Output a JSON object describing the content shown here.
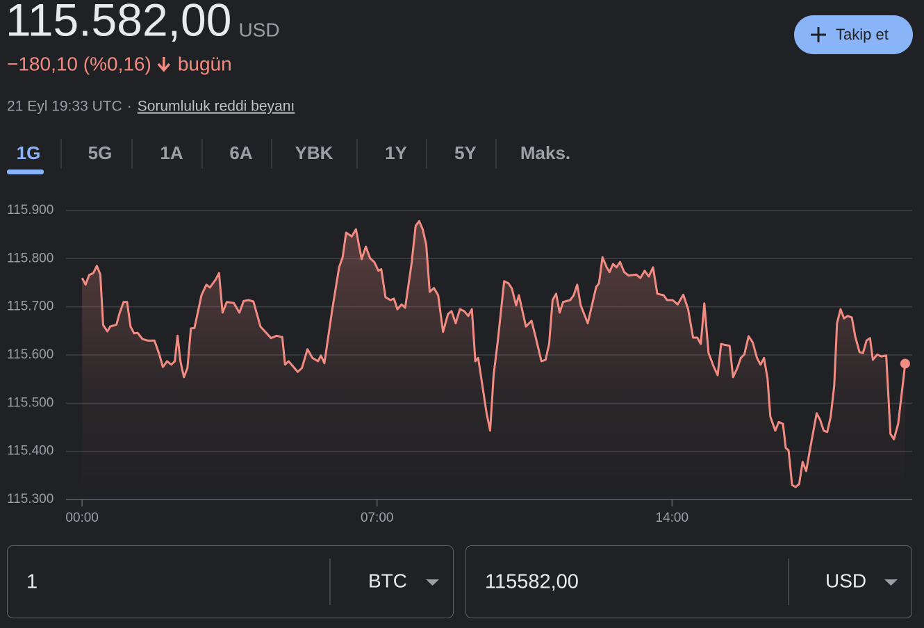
{
  "header": {
    "price": "115.582,00",
    "currency": "USD",
    "change": "−180,10 (%0,16)",
    "period": "bugün",
    "timestamp": "21 Eyl 19:33 UTC",
    "separator": "·",
    "disclaimer": "Sorumluluk reddi beyanı",
    "follow_button": "Takip et"
  },
  "tabs": {
    "items": [
      "1G",
      "5G",
      "1A",
      "6A",
      "YBK",
      "1Y",
      "5Y",
      "Maks."
    ],
    "active": 0
  },
  "chart_data": {
    "type": "line",
    "color": "#f28b82",
    "grid": true,
    "x": [
      0,
      5,
      10,
      16,
      21,
      26,
      30,
      36,
      40,
      49,
      53,
      59,
      64,
      69,
      74,
      79,
      86,
      93,
      103,
      110,
      115,
      121,
      127,
      132,
      136,
      140,
      145,
      150,
      155,
      160,
      170,
      177,
      182,
      190,
      195,
      200,
      206,
      216,
      224,
      230,
      237,
      244,
      254,
      269,
      277,
      285,
      289,
      294,
      307,
      313,
      321,
      328,
      336,
      340,
      345,
      356,
      366,
      371,
      376,
      384,
      390,
      398,
      404,
      410,
      416,
      422,
      426,
      432,
      439,
      444,
      449,
      455,
      460,
      469,
      475,
      480,
      485,
      490,
      495,
      501,
      507,
      514,
      521,
      526,
      532,
      538,
      544,
      550,
      555,
      560,
      564,
      576,
      581,
      586,
      592,
      601,
      607,
      612,
      618,
      622,
      632,
      640,
      646,
      654,
      660,
      665,
      670,
      675,
      680,
      685,
      695,
      700,
      705,
      710,
      720,
      726,
      732,
      736,
      741,
      747,
      751,
      756,
      761,
      766,
      772,
      778,
      789,
      795,
      801,
      807,
      813,
      819,
      828,
      833,
      841,
      848,
      856,
      863,
      870,
      876,
      881,
      886,
      892,
      899,
      905,
      910,
      915,
      922,
      927,
      933,
      938,
      943,
      949,
      955,
      961,
      966,
      971,
      976,
      980,
      987,
      992,
      998,
      1002,
      1006,
      1011,
      1016,
      1021,
      1026,
      1031,
      1036,
      1046,
      1051,
      1056,
      1061,
      1066,
      1071,
      1075,
      1080,
      1085,
      1090,
      1096,
      1101,
      1107,
      1112,
      1117,
      1122,
      1126,
      1132,
      1138,
      1145,
      1151,
      1156,
      1162,
      1172
    ],
    "values": [
      115760,
      115746,
      115766,
      115770,
      115785,
      115767,
      115662,
      115649,
      115659,
      115663,
      115685,
      115710,
      115710,
      115659,
      115645,
      115646,
      115633,
      115630,
      115630,
      115601,
      115575,
      115587,
      115580,
      115587,
      115640,
      115587,
      115554,
      115573,
      115655,
      115656,
      115724,
      115746,
      115740,
      115756,
      115770,
      115688,
      115710,
      115708,
      115688,
      115712,
      115714,
      115711,
      115659,
      115635,
      115640,
      115637,
      115580,
      115587,
      115565,
      115573,
      115612,
      115594,
      115587,
      115599,
      115583,
      115692,
      115782,
      115803,
      115854,
      115846,
      115861,
      115799,
      115825,
      115801,
      115793,
      115775,
      115778,
      115720,
      115714,
      115717,
      115695,
      115705,
      115698,
      115789,
      115868,
      115878,
      115861,
      115829,
      115731,
      115739,
      115724,
      115648,
      115685,
      115691,
      115666,
      115695,
      115691,
      115681,
      115695,
      115587,
      115594,
      115479,
      115443,
      115558,
      115630,
      115753,
      115749,
      115738,
      115703,
      115724,
      115659,
      115671,
      115636,
      115587,
      115590,
      115623,
      115714,
      115727,
      115688,
      115710,
      115714,
      115724,
      115746,
      115703,
      115666,
      115703,
      115741,
      115749,
      115803,
      115782,
      115772,
      115789,
      115782,
      115793,
      115772,
      115765,
      115767,
      115760,
      115775,
      115763,
      115782,
      115727,
      115724,
      115714,
      115714,
      115705,
      115725,
      115695,
      115636,
      115636,
      115623,
      115707,
      115604,
      115577,
      115558,
      115623,
      115621,
      115619,
      115554,
      115573,
      115594,
      115601,
      115639,
      115626,
      115594,
      115580,
      115594,
      115551,
      115472,
      115443,
      115461,
      115457,
      115407,
      115402,
      115330,
      115326,
      115332,
      115378,
      115359,
      115400,
      115479,
      115465,
      115443,
      115440,
      115472,
      115537,
      115666,
      115695,
      115676,
      115681,
      115678,
      115638,
      115606,
      115604,
      115630,
      115635,
      115590,
      115601,
      115597,
      115599,
      115436,
      115425,
      115457,
      115582
    ],
    "xlim": [
      -107,
      1182
    ],
    "xticks": [
      {
        "value": 0,
        "label": "00:00"
      },
      {
        "value": 420,
        "label": "07:00"
      },
      {
        "value": 840,
        "label": "14:00"
      }
    ],
    "ylim": [
      115300,
      115900
    ],
    "yticks": [
      {
        "value": 115300,
        "label": "115.300"
      },
      {
        "value": 115400,
        "label": "115.400"
      },
      {
        "value": 115500,
        "label": "115.500"
      },
      {
        "value": 115600,
        "label": "115.600"
      },
      {
        "value": 115700,
        "label": "115.700"
      },
      {
        "value": 115800,
        "label": "115.800"
      },
      {
        "value": 115900,
        "label": "115.900"
      }
    ]
  },
  "converter": {
    "from": {
      "amount": "1",
      "unit": "BTC"
    },
    "to": {
      "amount": "115582,00",
      "unit": "USD"
    }
  }
}
